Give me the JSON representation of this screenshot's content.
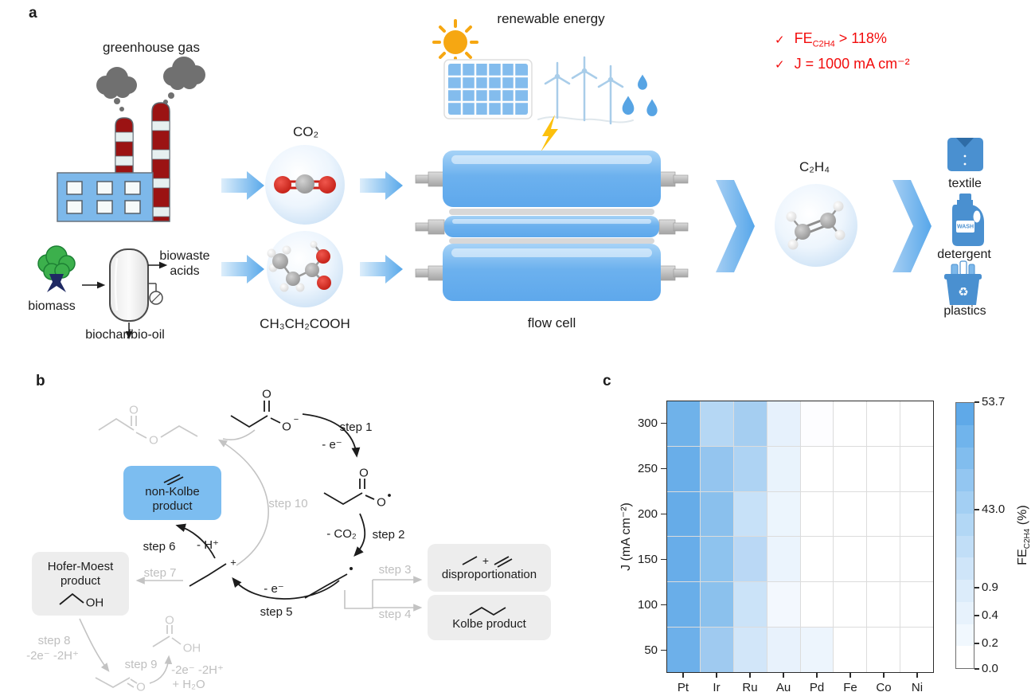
{
  "panel_labels": {
    "a": "a",
    "b": "b",
    "c": "c"
  },
  "panel_a": {
    "labels": {
      "greenhouse_gas": "greenhouse gas",
      "biomass": "biomass",
      "biowaste_acids_line1": "biowaste",
      "biowaste_acids_line2": "acids",
      "biochar": "biochar/bio-oil",
      "co2": "CO₂",
      "propionic_acid": "CH₃CH₂COOH",
      "renewable_energy": "renewable energy",
      "flow_cell": "flow cell",
      "ethylene": "C₂H₄",
      "textile": "textile",
      "detergent": "detergent",
      "plastics": "plastics",
      "detergent_label": "WASH",
      "recycle_glyph": "♻"
    },
    "claims": {
      "check": "✓",
      "fe": {
        "prefix": "FE",
        "sub": "C2H4",
        "rest": " > 118%"
      },
      "j": "J = 1000 mA cm⁻²",
      "color": "#f20d0d"
    }
  },
  "panel_b": {
    "steps": {
      "s1": "step 1",
      "s1_note": "- e⁻",
      "s2": "step 2",
      "s2_note": "- CO₂",
      "s3": "step 3",
      "s4": "step 4",
      "s5": "step 5",
      "s5_note": "- e⁻",
      "s6": "step 6",
      "s6_note": "- H⁺",
      "s7": "step 7",
      "s8": "step 8",
      "s8_note": "-2e⁻ -2H⁺",
      "s9": "step 9",
      "s9_note": "-2e⁻ -2H⁺",
      "s9_note2": "+ H₂O",
      "s10": "step 10"
    },
    "boxes": {
      "non_kolbe_line1": "non-Kolbe",
      "non_kolbe_line2": "product",
      "hofer_line1": "Hofer-Moest",
      "hofer_line2": "product",
      "disproportionation": "disproportionation",
      "kolbe": "Kolbe product"
    },
    "atoms": {
      "o": "O",
      "minus": "−",
      "plus": "+",
      "oh": "OH"
    }
  },
  "chart_data": {
    "type": "heatmap",
    "title": "",
    "xlabel": "",
    "ylabel": "J (mA cm⁻²)",
    "colorbar_label": {
      "prefix": "FE",
      "sub": "C2H4",
      "suffix": " (%)"
    },
    "x_categories": [
      "Pt",
      "Ir",
      "Ru",
      "Au",
      "Pd",
      "Fe",
      "Co",
      "Ni"
    ],
    "y_categories": [
      "300",
      "250",
      "200",
      "150",
      "100",
      "50"
    ],
    "values_estimated_from_color": true,
    "values": [
      [
        49.0,
        26.0,
        30.0,
        2.1,
        0.3,
        0.1,
        0.0,
        0.0
      ],
      [
        51.0,
        40.0,
        27.0,
        1.9,
        0.1,
        0.0,
        0.0,
        0.0
      ],
      [
        53.7,
        45.0,
        12.0,
        1.6,
        0.1,
        0.0,
        0.0,
        0.0
      ],
      [
        53.0,
        43.0,
        18.0,
        1.7,
        0.1,
        0.0,
        0.0,
        0.0
      ],
      [
        52.0,
        44.0,
        10.0,
        0.9,
        0.1,
        0.0,
        0.0,
        0.0
      ],
      [
        50.0,
        35.0,
        7.0,
        2.0,
        0.9,
        0.0,
        0.0,
        0.0
      ]
    ],
    "cell_colors": [
      [
        "#6fb2ea",
        "#b5d7f4",
        "#a5cef1",
        "#e6f1fc",
        "#fdfdff",
        "#ffffff",
        "#ffffff",
        "#ffffff"
      ],
      [
        "#69aee9",
        "#94c5ef",
        "#aed3f3",
        "#e9f3fc",
        "#ffffff",
        "#ffffff",
        "#ffffff",
        "#ffffff"
      ],
      [
        "#66ace8",
        "#8ac0ed",
        "#c7e1f8",
        "#ecf5fd",
        "#ffffff",
        "#ffffff",
        "#ffffff",
        "#ffffff"
      ],
      [
        "#68ade9",
        "#8ec3ee",
        "#bad8f5",
        "#ebf4fd",
        "#ffffff",
        "#ffffff",
        "#ffffff",
        "#ffffff"
      ],
      [
        "#69aee9",
        "#8bc1ed",
        "#cbe3f8",
        "#f3f8fe",
        "#ffffff",
        "#ffffff",
        "#ffffff",
        "#ffffff"
      ],
      [
        "#6db0ea",
        "#9fcaf0",
        "#d2e6f9",
        "#e8f2fc",
        "#edf5fd",
        "#ffffff",
        "#ffffff",
        "#ffffff"
      ]
    ],
    "colorbar": {
      "ticks": [
        {
          "label": "53.7",
          "pos": 0.0
        },
        {
          "label": "43.0",
          "pos": 0.403
        },
        {
          "label": "0.9",
          "pos": 0.696
        },
        {
          "label": "0.4",
          "pos": 0.8
        },
        {
          "label": "0.2",
          "pos": 0.904
        },
        {
          "label": "0.0",
          "pos": 1.0
        }
      ],
      "band_colors": [
        "#5fa9e8",
        "#70b4ec",
        "#81bdee",
        "#93c6f1",
        "#a3cff3",
        "#b2d7f5",
        "#c1def7",
        "#cfe5f9",
        "#dcecfa",
        "#e7f2fc",
        "#f1f8fe",
        "#ffffff"
      ]
    },
    "legend_position": "right",
    "grid": true
  }
}
